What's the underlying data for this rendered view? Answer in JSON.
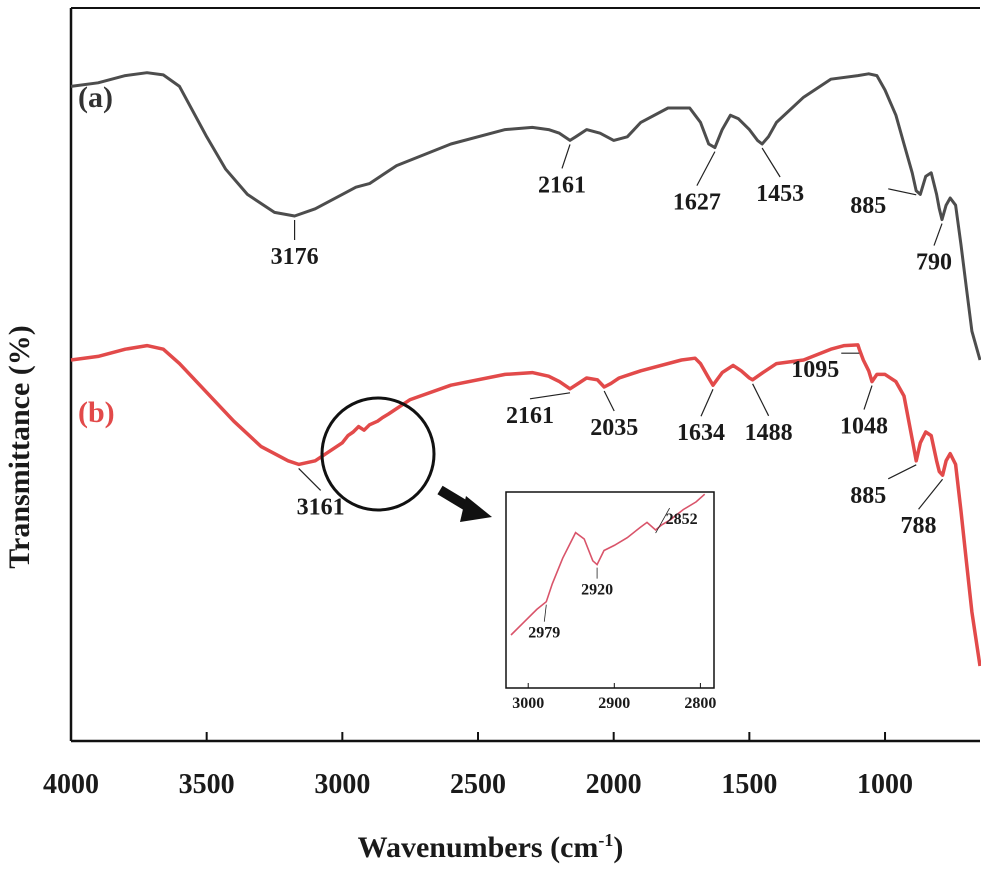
{
  "chart_data": {
    "type": "line",
    "xlabel_main": "Wavenumbers (cm",
    "xlabel_sup": "-1",
    "xlabel_close": ")",
    "ylabel": "Transmittance (%)",
    "xlim": [
      4000,
      650
    ],
    "x_reversed": true,
    "x_ticks": [
      4000,
      3500,
      3000,
      2500,
      2000,
      1500,
      1000
    ],
    "y_ticks_shown": false,
    "series": [
      {
        "name": "(a)",
        "color": "#4d4d4d",
        "x": [
          4000,
          3900,
          3800,
          3720,
          3660,
          3600,
          3500,
          3430,
          3350,
          3250,
          3176,
          3100,
          3000,
          2950,
          2900,
          2800,
          2600,
          2400,
          2300,
          2240,
          2200,
          2161,
          2140,
          2100,
          2050,
          2000,
          1950,
          1900,
          1800,
          1720,
          1700,
          1680,
          1650,
          1627,
          1600,
          1570,
          1540,
          1500,
          1470,
          1453,
          1430,
          1400,
          1300,
          1200,
          1100,
          1060,
          1030,
          1000,
          960,
          930,
          900,
          885,
          870,
          850,
          830,
          810,
          800,
          790,
          775,
          760,
          740,
          720,
          700,
          680,
          650
        ],
        "y": [
          96,
          97,
          99,
          99.8,
          99.2,
          96,
          82,
          73,
          66,
          61,
          60,
          62,
          66,
          68,
          69,
          74,
          80,
          84,
          84.6,
          84,
          83,
          81,
          82,
          84,
          83,
          81,
          82,
          86,
          90,
          90,
          88,
          86,
          80,
          79,
          84,
          88,
          87,
          84,
          81,
          80,
          82,
          86,
          93,
          98,
          99,
          99.5,
          99,
          95,
          88,
          80,
          72,
          67,
          66,
          71,
          72,
          66,
          62,
          59,
          63,
          65,
          63,
          52,
          40,
          28,
          20
        ]
      },
      {
        "name": "(b)",
        "color": "#e24a4a",
        "x": [
          4000,
          3900,
          3800,
          3720,
          3660,
          3600,
          3500,
          3400,
          3300,
          3200,
          3161,
          3100,
          3000,
          2979,
          2960,
          2940,
          2920,
          2900,
          2870,
          2852,
          2830,
          2750,
          2600,
          2400,
          2300,
          2240,
          2200,
          2161,
          2130,
          2100,
          2060,
          2035,
          2010,
          1980,
          1900,
          1750,
          1700,
          1680,
          1650,
          1634,
          1600,
          1560,
          1530,
          1500,
          1488,
          1450,
          1400,
          1300,
          1200,
          1150,
          1100,
          1095,
          1080,
          1060,
          1048,
          1030,
          1000,
          960,
          930,
          900,
          885,
          870,
          850,
          830,
          810,
          800,
          788,
          775,
          760,
          740,
          720,
          700,
          680,
          650
        ],
        "y": [
          20,
          21,
          23,
          24,
          23,
          19,
          11,
          3,
          -4,
          -8,
          -9,
          -8,
          -3,
          -1,
          0,
          1.5,
          0.5,
          2,
          3,
          4,
          5,
          9,
          13,
          16,
          16.5,
          15.5,
          14,
          12,
          13.5,
          15,
          14.5,
          12.5,
          13.5,
          15,
          17,
          20,
          20.5,
          19,
          15,
          13,
          16.5,
          18.5,
          17,
          15,
          14.5,
          16.5,
          19,
          20,
          23,
          24,
          24.2,
          23,
          20,
          17,
          14,
          16,
          16,
          14,
          10,
          -2,
          -8,
          -3,
          0,
          -1,
          -8,
          -11,
          -12,
          -8,
          -6,
          -9,
          -22,
          -36,
          -50,
          -65
        ]
      }
    ],
    "series_labels": [
      {
        "text": "(a)",
        "color": "#333333"
      },
      {
        "text": "(b)",
        "color": "#e24a4a"
      }
    ],
    "annotations": [
      {
        "label": "3176",
        "series": 0,
        "x": 3176
      },
      {
        "label": "2161",
        "series": 0,
        "x": 2161
      },
      {
        "label": "1627",
        "series": 0,
        "x": 1627
      },
      {
        "label": "1453",
        "series": 0,
        "x": 1453
      },
      {
        "label": "885",
        "series": 0,
        "x": 885
      },
      {
        "label": "790",
        "series": 0,
        "x": 790
      },
      {
        "label": "3161",
        "series": 1,
        "x": 3161
      },
      {
        "label": "2161",
        "series": 1,
        "x": 2161
      },
      {
        "label": "2035",
        "series": 1,
        "x": 2035
      },
      {
        "label": "1634",
        "series": 1,
        "x": 1634
      },
      {
        "label": "1488",
        "series": 1,
        "x": 1488
      },
      {
        "label": "1095",
        "series": 1,
        "x": 1095
      },
      {
        "label": "1048",
        "series": 1,
        "x": 1048
      },
      {
        "label": "885",
        "series": 1,
        "x": 885
      },
      {
        "label": "788",
        "series": 1,
        "x": 788
      }
    ],
    "inset": {
      "xlim": [
        3020,
        2790
      ],
      "x_ticks": [
        3000,
        2900,
        2800
      ],
      "series": [
        {
          "color": "#d9546a",
          "x": [
            3020,
            3005,
            2990,
            2979,
            2972,
            2960,
            2945,
            2935,
            2925,
            2920,
            2912,
            2900,
            2885,
            2870,
            2862,
            2852,
            2845,
            2835,
            2820,
            2805,
            2795
          ],
          "y": [
            0.0,
            0.1,
            0.2,
            0.26,
            0.4,
            0.6,
            0.8,
            0.75,
            0.58,
            0.55,
            0.66,
            0.7,
            0.76,
            0.84,
            0.88,
            0.82,
            0.86,
            0.9,
            0.98,
            1.04,
            1.1
          ]
        }
      ],
      "annotations": [
        {
          "label": "2979",
          "x": 2979
        },
        {
          "label": "2920",
          "x": 2920
        },
        {
          "label": "2852",
          "x": 2852
        }
      ]
    }
  }
}
